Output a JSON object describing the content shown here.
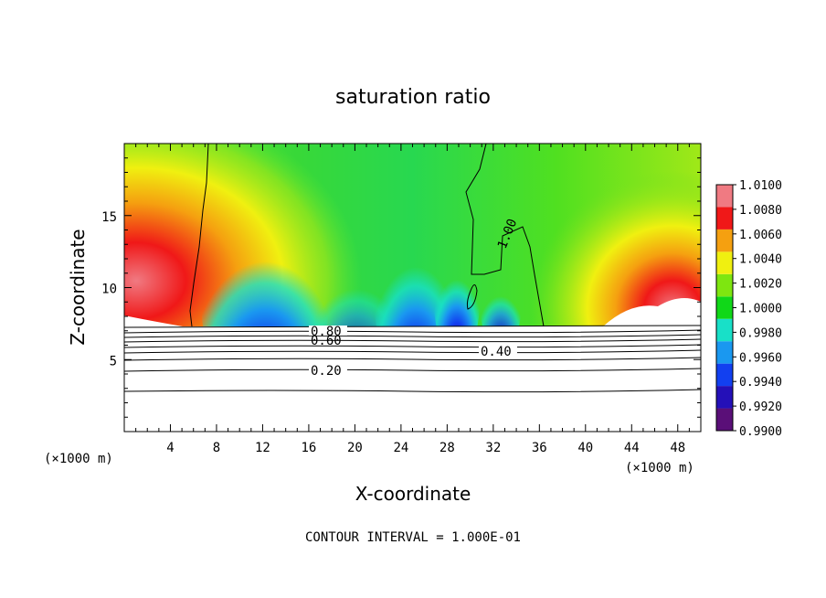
{
  "chart_data": {
    "type": "heatmap",
    "title": "saturation ratio",
    "xlabel": "X-coordinate",
    "ylabel": "Z-coordinate",
    "x_unit": "(×1000 m)",
    "y_unit": "(×1000 m)",
    "xlim": [
      0,
      50
    ],
    "ylim": [
      0,
      20
    ],
    "x_ticks": [
      4,
      8,
      12,
      16,
      20,
      24,
      28,
      32,
      36,
      40,
      44,
      48
    ],
    "y_ticks": [
      5,
      10,
      15
    ],
    "x_tick_labels": [
      "4",
      "8",
      "12",
      "16",
      "20",
      "24",
      "28",
      "32",
      "36",
      "40",
      "44",
      "48"
    ],
    "y_tick_labels": [
      "5",
      "10",
      "15"
    ],
    "footer": "CONTOUR INTERVAL = 1.000E-01",
    "colorbar": {
      "levels": [
        0.99,
        0.992,
        0.994,
        0.996,
        0.998,
        1.0,
        1.002,
        1.004,
        1.006,
        1.008,
        1.01
      ],
      "labels": [
        "1.0100",
        "1.0080",
        "1.0060",
        "1.0040",
        "1.0020",
        "1.0000",
        "0.9980",
        "0.9960",
        "0.9940",
        "0.9920",
        "0.9900"
      ],
      "colors": [
        "#5a0f78",
        "#2410b8",
        "#1240f0",
        "#1a98f0",
        "#18e0c8",
        "#10d818",
        "#7ee610",
        "#f0f010",
        "#f5a010",
        "#f01818",
        "#f07a82"
      ]
    },
    "contours": [
      {
        "label": "0.20",
        "z": 4.2
      },
      {
        "label": "0.40",
        "z": 5.5
      },
      {
        "label": "0.60",
        "z": 6.3
      },
      {
        "label": "0.80",
        "z": 6.7
      },
      {
        "label": "1.00",
        "z": 7.4
      }
    ],
    "surface_level": 7.3
  }
}
